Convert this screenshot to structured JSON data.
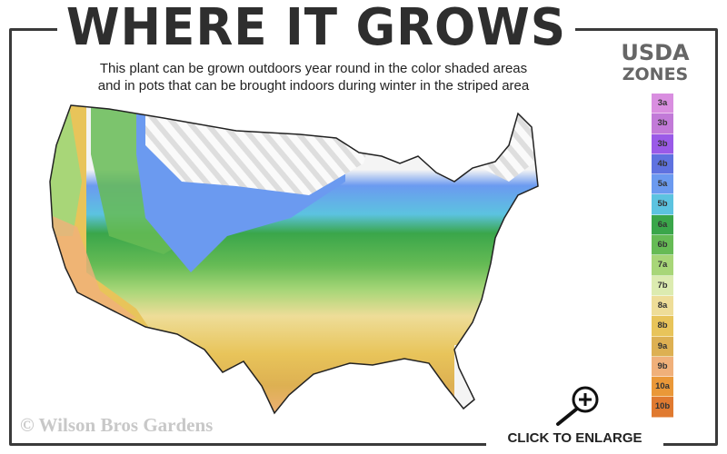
{
  "title": "WHERE IT GROWS",
  "subtitle_line1": "This plant can be grown outdoors year round in the color shaded areas",
  "subtitle_line2": "and in pots that can be brought indoors during winter in the striped area",
  "legend": {
    "title_line1": "USDA",
    "title_line2": "ZONES",
    "zones": [
      {
        "label": "3a",
        "color": "#d98ee0"
      },
      {
        "label": "3b",
        "color": "#c27ad8"
      },
      {
        "label": "3b",
        "color": "#9a5ae8"
      },
      {
        "label": "4b",
        "color": "#5f72e0"
      },
      {
        "label": "5a",
        "color": "#6b9af0"
      },
      {
        "label": "5b",
        "color": "#5cc3e0"
      },
      {
        "label": "6a",
        "color": "#3aa64a"
      },
      {
        "label": "6b",
        "color": "#66bb55"
      },
      {
        "label": "7a",
        "color": "#a8d678"
      },
      {
        "label": "7b",
        "color": "#dcebb0"
      },
      {
        "label": "8a",
        "color": "#eedd98"
      },
      {
        "label": "8b",
        "color": "#e8c45a"
      },
      {
        "label": "9a",
        "color": "#ddb052"
      },
      {
        "label": "9b",
        "color": "#f0b07a"
      },
      {
        "label": "10a",
        "color": "#ea9838"
      },
      {
        "label": "10b",
        "color": "#e07a30"
      }
    ]
  },
  "copyright": "© Wilson Bros Gardens",
  "enlarge_label": "CLICK TO ENLARGE",
  "icons": {
    "enlarge": "magnifier-plus-icon"
  }
}
